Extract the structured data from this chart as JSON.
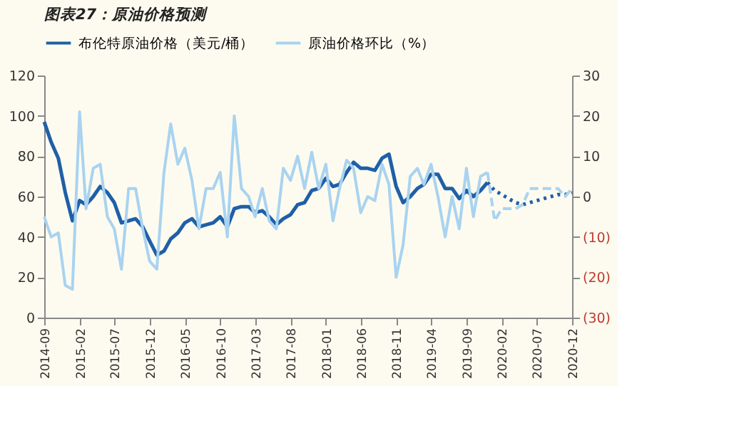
{
  "chart_data": {
    "type": "line",
    "title": "图表27：原油价格预测",
    "x": [
      "2014-09",
      "2014-10",
      "2014-11",
      "2014-12",
      "2015-01",
      "2015-02",
      "2015-03",
      "2015-04",
      "2015-05",
      "2015-06",
      "2015-07",
      "2015-08",
      "2015-09",
      "2015-10",
      "2015-11",
      "2015-12",
      "2016-01",
      "2016-02",
      "2016-03",
      "2016-04",
      "2016-05",
      "2016-06",
      "2016-07",
      "2016-08",
      "2016-09",
      "2016-10",
      "2016-11",
      "2016-12",
      "2017-01",
      "2017-02",
      "2017-03",
      "2017-04",
      "2017-05",
      "2017-06",
      "2017-07",
      "2017-08",
      "2017-09",
      "2017-10",
      "2017-11",
      "2017-12",
      "2018-01",
      "2018-02",
      "2018-03",
      "2018-04",
      "2018-05",
      "2018-06",
      "2018-07",
      "2018-08",
      "2018-09",
      "2018-10",
      "2018-11",
      "2018-12",
      "2019-01",
      "2019-02",
      "2019-03",
      "2019-04",
      "2019-05",
      "2019-06",
      "2019-07",
      "2019-08",
      "2019-09",
      "2019-10",
      "2019-11",
      "2019-12",
      "2020-01",
      "2020-02",
      "2020-03",
      "2020-04",
      "2020-05",
      "2020-06",
      "2020-07",
      "2020-08",
      "2020-09",
      "2020-10",
      "2020-11",
      "2020-12"
    ],
    "xlim": [
      "2014-09",
      "2020-12"
    ],
    "xticks": [
      "2014-09",
      "2015-02",
      "2015-07",
      "2015-12",
      "2016-05",
      "2016-10",
      "2017-03",
      "2017-08",
      "2018-01",
      "2018-06",
      "2018-11",
      "2019-04",
      "2019-09",
      "2020-02",
      "2020-07",
      "2020-12"
    ],
    "ylim": [
      0,
      120
    ],
    "yticks": [
      0,
      20,
      40,
      60,
      80,
      100,
      120
    ],
    "y2lim": [
      -30,
      30
    ],
    "y2ticks": [
      {
        "value": -30,
        "label": "(30)"
      },
      {
        "value": -20,
        "label": "(20)"
      },
      {
        "value": -10,
        "label": "(10)"
      },
      0,
      10,
      20,
      30
    ],
    "grid": false,
    "legend": "top",
    "marker": "none",
    "series": [
      {
        "name": "布伦特原油价格（美元/桶）",
        "color": "#1f5fa8",
        "line_style": "solid",
        "values": [
          97,
          87,
          79,
          62,
          48,
          58,
          56,
          60,
          65,
          62,
          57,
          47,
          48,
          49,
          45,
          38,
          31,
          33,
          39,
          42,
          47,
          49,
          45,
          46,
          47,
          50,
          45,
          54,
          55,
          55,
          52,
          53,
          50,
          46,
          49,
          51,
          56,
          57,
          63,
          64,
          69,
          65,
          66,
          72,
          77,
          74,
          74,
          73,
          79,
          81,
          65,
          57,
          60,
          64,
          66,
          71,
          71,
          64,
          64,
          59,
          63,
          60,
          63,
          67,
          null,
          null,
          null,
          null,
          null,
          null,
          null,
          null,
          null,
          null,
          null,
          null
        ]
      },
      {
        "color": "#1f5fa8",
        "line_style": "dotted",
        "values": [
          null,
          null,
          null,
          null,
          null,
          null,
          null,
          null,
          null,
          null,
          null,
          null,
          null,
          null,
          null,
          null,
          null,
          null,
          null,
          null,
          null,
          null,
          null,
          null,
          null,
          null,
          null,
          null,
          null,
          null,
          null,
          null,
          null,
          null,
          null,
          null,
          null,
          null,
          null,
          null,
          null,
          null,
          null,
          null,
          null,
          null,
          null,
          null,
          null,
          null,
          null,
          null,
          null,
          null,
          null,
          null,
          null,
          null,
          null,
          null,
          null,
          null,
          null,
          67,
          63,
          61,
          59,
          57,
          56,
          57,
          58,
          59,
          60,
          61,
          61,
          62
        ]
      },
      {
        "name": "原油价格环比（%）",
        "color": "#a9d3f0",
        "axis": "y2",
        "line_style": "solid",
        "values": [
          -5,
          -10,
          -9,
          -22,
          -23,
          21,
          -3,
          7,
          8,
          -5,
          -8,
          -18,
          2,
          2,
          -8,
          -16,
          -18,
          6,
          18,
          8,
          12,
          4,
          -8,
          2,
          2,
          6,
          -10,
          20,
          2,
          0,
          -5,
          2,
          -6,
          -8,
          7,
          4,
          10,
          2,
          11,
          2,
          8,
          -6,
          2,
          9,
          7,
          -4,
          0,
          -1,
          8,
          3,
          -20,
          -12,
          5,
          7,
          3,
          8,
          0,
          -10,
          0,
          -8,
          7,
          -5,
          5,
          6,
          null,
          null,
          null,
          null,
          null,
          null,
          null,
          null,
          null,
          null,
          null,
          null
        ]
      },
      {
        "color": "#a9d3f0",
        "axis": "y2",
        "line_style": "dashed",
        "values": [
          null,
          null,
          null,
          null,
          null,
          null,
          null,
          null,
          null,
          null,
          null,
          null,
          null,
          null,
          null,
          null,
          null,
          null,
          null,
          null,
          null,
          null,
          null,
          null,
          null,
          null,
          null,
          null,
          null,
          null,
          null,
          null,
          null,
          null,
          null,
          null,
          null,
          null,
          null,
          null,
          null,
          null,
          null,
          null,
          null,
          null,
          null,
          null,
          null,
          null,
          null,
          null,
          null,
          null,
          null,
          null,
          null,
          null,
          null,
          null,
          null,
          null,
          null,
          6,
          -6,
          -3,
          -3,
          -3,
          -2,
          2,
          2,
          2,
          2,
          2,
          0,
          2
        ]
      }
    ]
  }
}
